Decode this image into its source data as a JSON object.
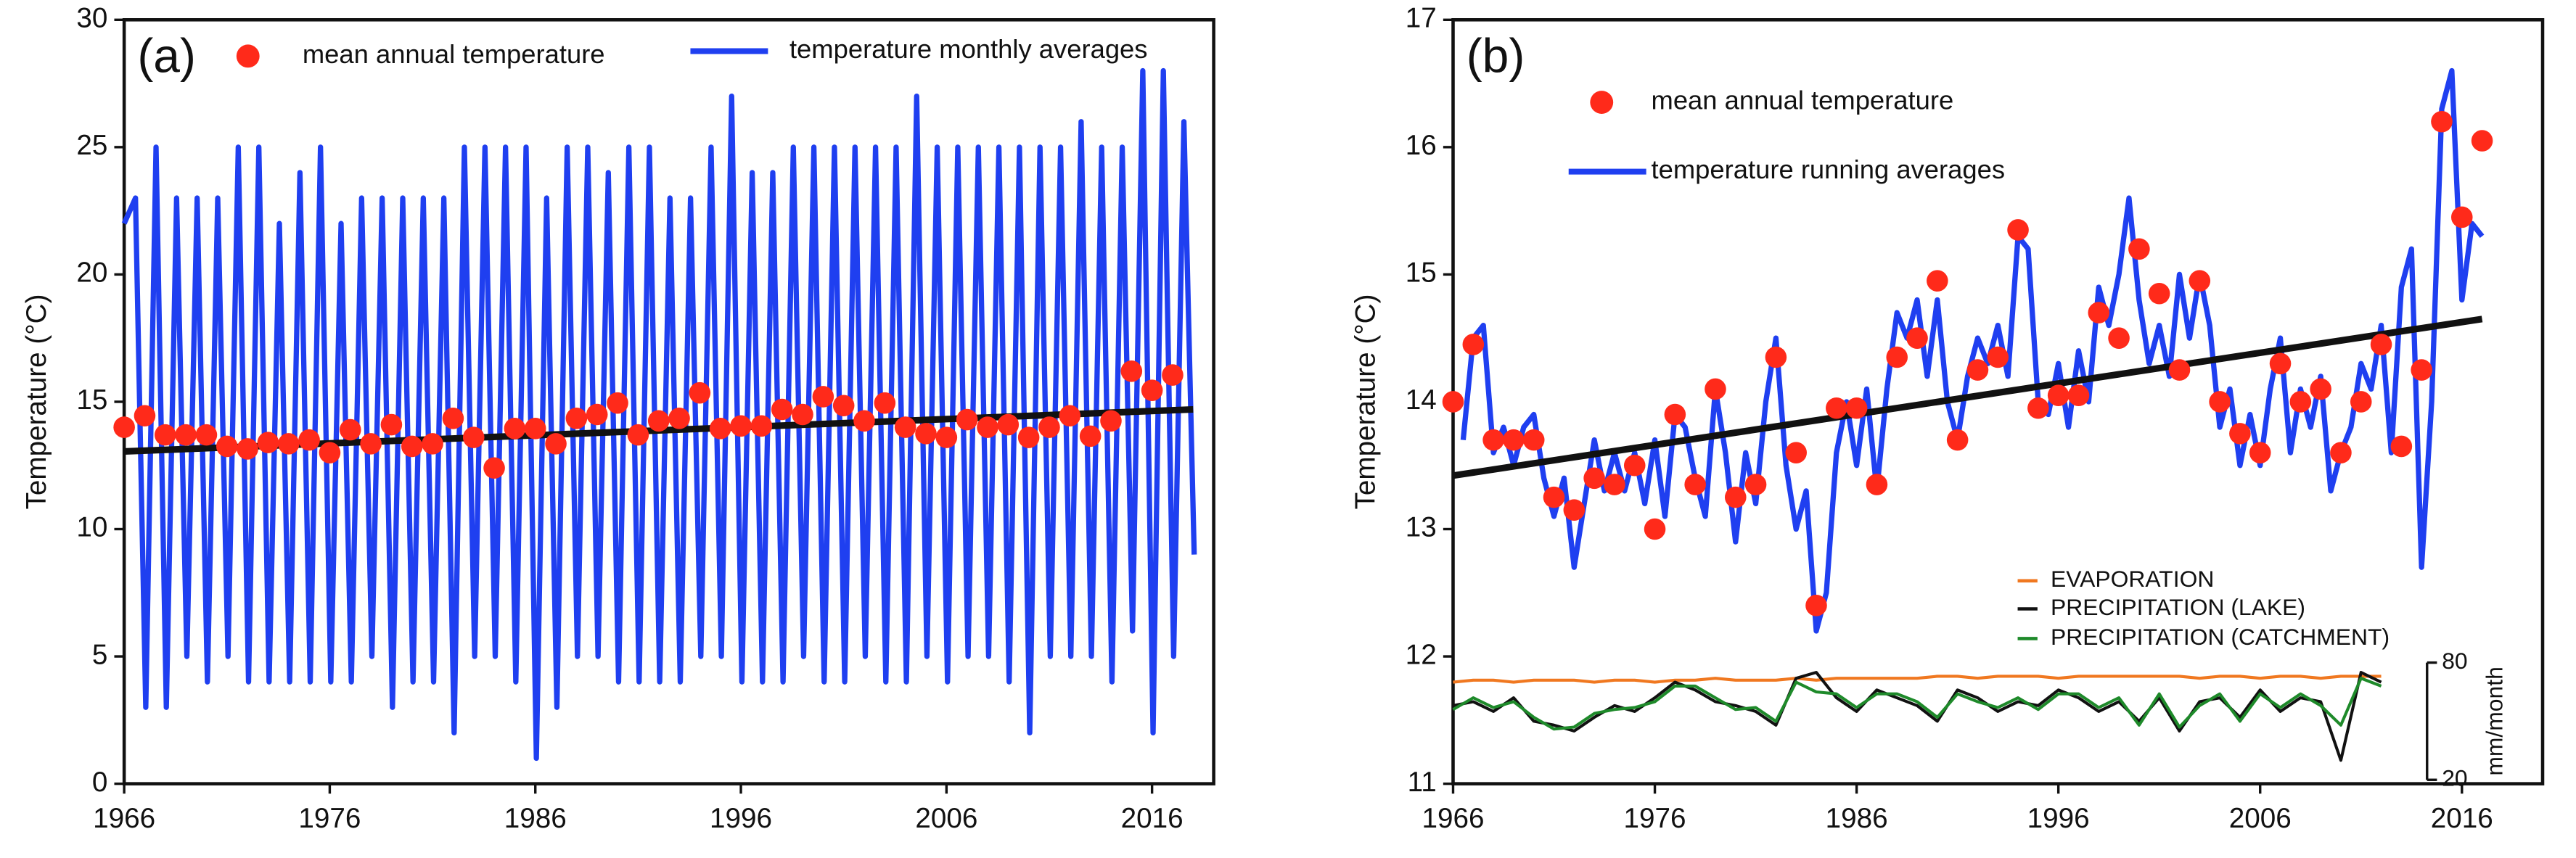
{
  "chart_data": [
    {
      "type": "line",
      "label": "(a)",
      "ylabel": "Temperature (°C)",
      "xlim": [
        1966,
        2019
      ],
      "xticks": [
        1966,
        1976,
        1986,
        1996,
        2006,
        2016
      ],
      "ylim": [
        0,
        30
      ],
      "yticks": [
        0,
        5,
        10,
        15,
        20,
        25,
        30
      ],
      "series": [
        {
          "name": "mean annual temperature",
          "type": "scatter",
          "color": "#ff2a1a",
          "x": [
            1966,
            1967,
            1968,
            1969,
            1970,
            1971,
            1972,
            1973,
            1974,
            1975,
            1976,
            1977,
            1978,
            1979,
            1980,
            1981,
            1982,
            1983,
            1984,
            1985,
            1986,
            1987,
            1988,
            1989,
            1990,
            1991,
            1992,
            1993,
            1994,
            1995,
            1996,
            1997,
            1998,
            1999,
            2000,
            2001,
            2002,
            2003,
            2004,
            2005,
            2006,
            2007,
            2008,
            2009,
            2010,
            2011,
            2012,
            2013,
            2014,
            2015,
            2016,
            2017
          ],
          "values": [
            14.0,
            14.45,
            13.7,
            13.7,
            13.7,
            13.25,
            13.15,
            13.4,
            13.35,
            13.5,
            13.0,
            13.9,
            13.35,
            14.1,
            13.25,
            13.35,
            14.35,
            13.6,
            12.4,
            13.95,
            13.95,
            13.35,
            14.35,
            14.5,
            14.95,
            13.7,
            14.25,
            14.35,
            15.35,
            13.95,
            14.05,
            14.05,
            14.7,
            14.5,
            15.2,
            14.85,
            14.25,
            14.95,
            14.0,
            13.75,
            13.6,
            14.3,
            14.0,
            14.1,
            13.6,
            14.0,
            14.45,
            13.65,
            14.25,
            16.2,
            15.45,
            16.05
          ]
        },
        {
          "name": "temperature monthly averages",
          "type": "line",
          "color": "#1f3ff0",
          "x": [
            1966.0,
            1966.55,
            1967.05,
            1967.55,
            1968.05,
            1968.55,
            1969.05,
            1969.55,
            1970.05,
            1970.55,
            1971.05,
            1971.55,
            1972.05,
            1972.55,
            1973.05,
            1973.55,
            1974.05,
            1974.55,
            1975.05,
            1975.55,
            1976.05,
            1976.55,
            1977.05,
            1977.55,
            1978.05,
            1978.55,
            1979.05,
            1979.55,
            1980.05,
            1980.55,
            1981.05,
            1981.55,
            1982.05,
            1982.55,
            1983.05,
            1983.55,
            1984.05,
            1984.55,
            1985.05,
            1985.55,
            1986.05,
            1986.55,
            1987.05,
            1987.55,
            1988.05,
            1988.55,
            1989.05,
            1989.55,
            1990.05,
            1990.55,
            1991.05,
            1991.55,
            1992.05,
            1992.55,
            1993.05,
            1993.55,
            1994.05,
            1994.55,
            1995.05,
            1995.55,
            1996.05,
            1996.55,
            1997.05,
            1997.55,
            1998.05,
            1998.55,
            1999.05,
            1999.55,
            2000.05,
            2000.55,
            2001.05,
            2001.55,
            2002.05,
            2002.55,
            2003.05,
            2003.55,
            2004.05,
            2004.55,
            2005.05,
            2005.55,
            2006.05,
            2006.55,
            2007.05,
            2007.55,
            2008.05,
            2008.55,
            2009.05,
            2009.55,
            2010.05,
            2010.55,
            2011.05,
            2011.55,
            2012.05,
            2012.55,
            2013.05,
            2013.55,
            2014.05,
            2014.55,
            2015.05,
            2015.55,
            2016.05,
            2016.55,
            2017.05,
            2017.55,
            2018.05
          ],
          "values": [
            22,
            23,
            3,
            25,
            3,
            23,
            5,
            23,
            4,
            23,
            5,
            25,
            4,
            25,
            4,
            22,
            4,
            24,
            4,
            25,
            4,
            22,
            4,
            23,
            5,
            23,
            3,
            23,
            4,
            23,
            4,
            23,
            2,
            25,
            5,
            25,
            5,
            25,
            4,
            25,
            1,
            23,
            3,
            25,
            5,
            25,
            5,
            24,
            4,
            25,
            4,
            25,
            4,
            23,
            4,
            23,
            5,
            25,
            5,
            27,
            4,
            24,
            4,
            24,
            4,
            25,
            5,
            25,
            4,
            25,
            4,
            25,
            5,
            25,
            4,
            25,
            4,
            27,
            5,
            25,
            4,
            25,
            5,
            25,
            5,
            25,
            4,
            25,
            2,
            25,
            5,
            25,
            5,
            26,
            5,
            25,
            4,
            25,
            6,
            28,
            2,
            28,
            5,
            26,
            9
          ]
        },
        {
          "type": "line",
          "color": "#111111",
          "x": [
            1966,
            2018
          ],
          "values": [
            13.05,
            14.7
          ]
        }
      ]
    },
    {
      "type": "line",
      "label": "(b)",
      "ylabel": "Temperature (°C)",
      "y2label": "mm/month",
      "xlim": [
        1966,
        2020
      ],
      "xticks": [
        1966,
        1976,
        1986,
        1996,
        2006,
        2016
      ],
      "ylim": [
        11,
        17
      ],
      "yticks": [
        11,
        12,
        13,
        14,
        15,
        16,
        17
      ],
      "y2lim": [
        18,
        409
      ],
      "y2ticks": [
        20,
        80
      ],
      "series": [
        {
          "name": "mean annual temperature",
          "type": "scatter",
          "color": "#ff2a1a",
          "x": [
            1966,
            1967,
            1968,
            1969,
            1970,
            1971,
            1972,
            1973,
            1974,
            1975,
            1976,
            1977,
            1978,
            1979,
            1980,
            1981,
            1982,
            1983,
            1984,
            1985,
            1986,
            1987,
            1988,
            1989,
            1990,
            1991,
            1992,
            1993,
            1994,
            1995,
            1996,
            1997,
            1998,
            1999,
            2000,
            2001,
            2002,
            2003,
            2004,
            2005,
            2006,
            2007,
            2008,
            2009,
            2010,
            2011,
            2012,
            2013,
            2014,
            2015,
            2016,
            2017
          ],
          "values": [
            14.0,
            14.45,
            13.7,
            13.7,
            13.7,
            13.25,
            13.15,
            13.4,
            13.35,
            13.5,
            13.0,
            13.9,
            13.35,
            14.1,
            13.25,
            13.35,
            14.35,
            13.6,
            12.4,
            13.95,
            13.95,
            13.35,
            14.35,
            14.5,
            14.95,
            13.7,
            14.25,
            14.35,
            15.35,
            13.95,
            14.05,
            14.05,
            14.7,
            14.5,
            15.2,
            14.85,
            14.25,
            14.95,
            14.0,
            13.75,
            13.6,
            14.3,
            14.0,
            14.1,
            13.6,
            14.0,
            14.45,
            13.65,
            14.25,
            16.2,
            15.45,
            16.05
          ]
        },
        {
          "name": "temperature running averages",
          "type": "line",
          "color": "#1f3ff0",
          "x": [
            1966.5,
            1967.0,
            1967.5,
            1968.0,
            1968.5,
            1969.0,
            1969.5,
            1970.0,
            1970.5,
            1971.0,
            1971.5,
            1972.0,
            1972.5,
            1973.0,
            1973.5,
            1974.0,
            1974.5,
            1975.0,
            1975.5,
            1976.0,
            1976.5,
            1977.0,
            1977.5,
            1978.0,
            1978.5,
            1979.0,
            1979.5,
            1980.0,
            1980.5,
            1981.0,
            1981.5,
            1982.0,
            1982.5,
            1983.0,
            1983.5,
            1984.0,
            1984.5,
            1985.0,
            1985.5,
            1986.0,
            1986.5,
            1987.0,
            1987.5,
            1988.0,
            1988.5,
            1989.0,
            1989.5,
            1990.0,
            1990.5,
            1991.0,
            1991.5,
            1992.0,
            1992.5,
            1993.0,
            1993.5,
            1994.0,
            1994.5,
            1995.0,
            1995.5,
            1996.0,
            1996.5,
            1997.0,
            1997.5,
            1998.0,
            1998.5,
            1999.0,
            1999.5,
            2000.0,
            2000.5,
            2001.0,
            2001.5,
            2002.0,
            2002.5,
            2003.0,
            2003.5,
            2004.0,
            2004.5,
            2005.0,
            2005.5,
            2006.0,
            2006.5,
            2007.0,
            2007.5,
            2008.0,
            2008.5,
            2009.0,
            2009.5,
            2010.0,
            2010.5,
            2011.0,
            2011.5,
            2012.0,
            2012.5,
            2013.0,
            2013.5,
            2014.0,
            2014.5,
            2015.0,
            2015.5,
            2016.0,
            2016.5,
            2017.0
          ],
          "values": [
            13.7,
            14.5,
            14.6,
            13.6,
            13.8,
            13.5,
            13.8,
            13.9,
            13.4,
            13.1,
            13.4,
            12.7,
            13.2,
            13.7,
            13.3,
            13.6,
            13.3,
            13.6,
            13.2,
            13.7,
            13.1,
            13.9,
            13.8,
            13.4,
            13.1,
            14.1,
            13.6,
            12.9,
            13.6,
            13.2,
            14.0,
            14.5,
            13.5,
            13.0,
            13.3,
            12.2,
            12.5,
            13.6,
            14.0,
            13.5,
            14.1,
            13.3,
            14.1,
            14.7,
            14.5,
            14.8,
            14.2,
            14.8,
            14.0,
            13.7,
            14.2,
            14.5,
            14.3,
            14.6,
            14.2,
            15.3,
            15.2,
            14.0,
            13.9,
            14.3,
            13.8,
            14.4,
            14.0,
            14.9,
            14.6,
            15.0,
            15.6,
            14.8,
            14.3,
            14.6,
            14.2,
            15.0,
            14.5,
            15.0,
            14.6,
            13.8,
            14.1,
            13.5,
            13.9,
            13.5,
            14.1,
            14.5,
            13.6,
            14.1,
            13.8,
            14.2,
            13.3,
            13.6,
            13.8,
            14.3,
            14.1,
            14.6,
            13.6,
            14.9,
            15.2,
            12.7,
            14.0,
            16.3,
            16.6,
            14.8,
            15.4,
            15.3
          ]
        },
        {
          "type": "line",
          "color": "#111111",
          "x": [
            1966,
            2017
          ],
          "values": [
            13.42,
            14.65
          ]
        },
        {
          "name": "EVAPORATION",
          "type": "line",
          "axis": "y2",
          "color": "#f07820",
          "x": [
            1966,
            1967,
            1968,
            1969,
            1970,
            1971,
            1972,
            1973,
            1974,
            1975,
            1976,
            1977,
            1978,
            1979,
            1980,
            1981,
            1982,
            1983,
            1984,
            1985,
            1986,
            1987,
            1988,
            1989,
            1990,
            1991,
            1992,
            1993,
            1994,
            1995,
            1996,
            1997,
            1998,
            1999,
            2000,
            2001,
            2002,
            2003,
            2004,
            2005,
            2006,
            2007,
            2008,
            2009,
            2010,
            2011,
            2012
          ],
          "values": [
            70,
            71,
            71,
            70,
            71,
            71,
            71,
            70,
            71,
            71,
            70,
            71,
            71,
            72,
            71,
            71,
            71,
            72,
            71,
            72,
            72,
            72,
            72,
            72,
            73,
            73,
            72,
            73,
            73,
            73,
            72,
            73,
            73,
            73,
            73,
            73,
            73,
            72,
            73,
            73,
            72,
            73,
            73,
            72,
            73,
            73,
            73
          ]
        },
        {
          "name": "PRECIPITATION (LAKE)",
          "type": "line",
          "axis": "y2",
          "color": "#111111",
          "x": [
            1966,
            1967,
            1968,
            1969,
            1970,
            1971,
            1972,
            1973,
            1974,
            1975,
            1976,
            1977,
            1978,
            1979,
            1980,
            1981,
            1982,
            1983,
            1984,
            1985,
            1986,
            1987,
            1988,
            1989,
            1990,
            1991,
            1992,
            1993,
            1994,
            1995,
            1996,
            1997,
            1998,
            1999,
            2000,
            2001,
            2002,
            2003,
            2004,
            2005,
            2006,
            2007,
            2008,
            2009,
            2010,
            2011,
            2012
          ],
          "values": [
            58,
            60,
            55,
            62,
            50,
            48,
            45,
            52,
            58,
            55,
            62,
            70,
            66,
            60,
            58,
            55,
            48,
            72,
            75,
            62,
            55,
            66,
            62,
            58,
            50,
            66,
            62,
            55,
            60,
            58,
            66,
            62,
            55,
            60,
            50,
            62,
            45,
            60,
            62,
            52,
            66,
            55,
            62,
            60,
            30,
            75,
            70
          ]
        },
        {
          "name": "PRECIPITATION (CATCHMENT)",
          "type": "line",
          "axis": "y2",
          "color": "#1e8a2a",
          "x": [
            1966,
            1967,
            1968,
            1969,
            1970,
            1971,
            1972,
            1973,
            1974,
            1975,
            1976,
            1977,
            1978,
            1979,
            1980,
            1981,
            1982,
            1983,
            1984,
            1985,
            1986,
            1987,
            1988,
            1989,
            1990,
            1991,
            1992,
            1993,
            1994,
            1995,
            1996,
            1997,
            1998,
            1999,
            2000,
            2001,
            2002,
            2003,
            2004,
            2005,
            2006,
            2007,
            2008,
            2009,
            2010,
            2011,
            2012
          ],
          "values": [
            56,
            62,
            57,
            60,
            52,
            46,
            47,
            54,
            56,
            57,
            60,
            68,
            68,
            62,
            56,
            57,
            50,
            70,
            65,
            64,
            57,
            64,
            64,
            60,
            52,
            64,
            60,
            57,
            62,
            56,
            64,
            64,
            57,
            62,
            48,
            64,
            47,
            58,
            64,
            50,
            64,
            57,
            64,
            58,
            48,
            72,
            68
          ]
        }
      ]
    }
  ]
}
